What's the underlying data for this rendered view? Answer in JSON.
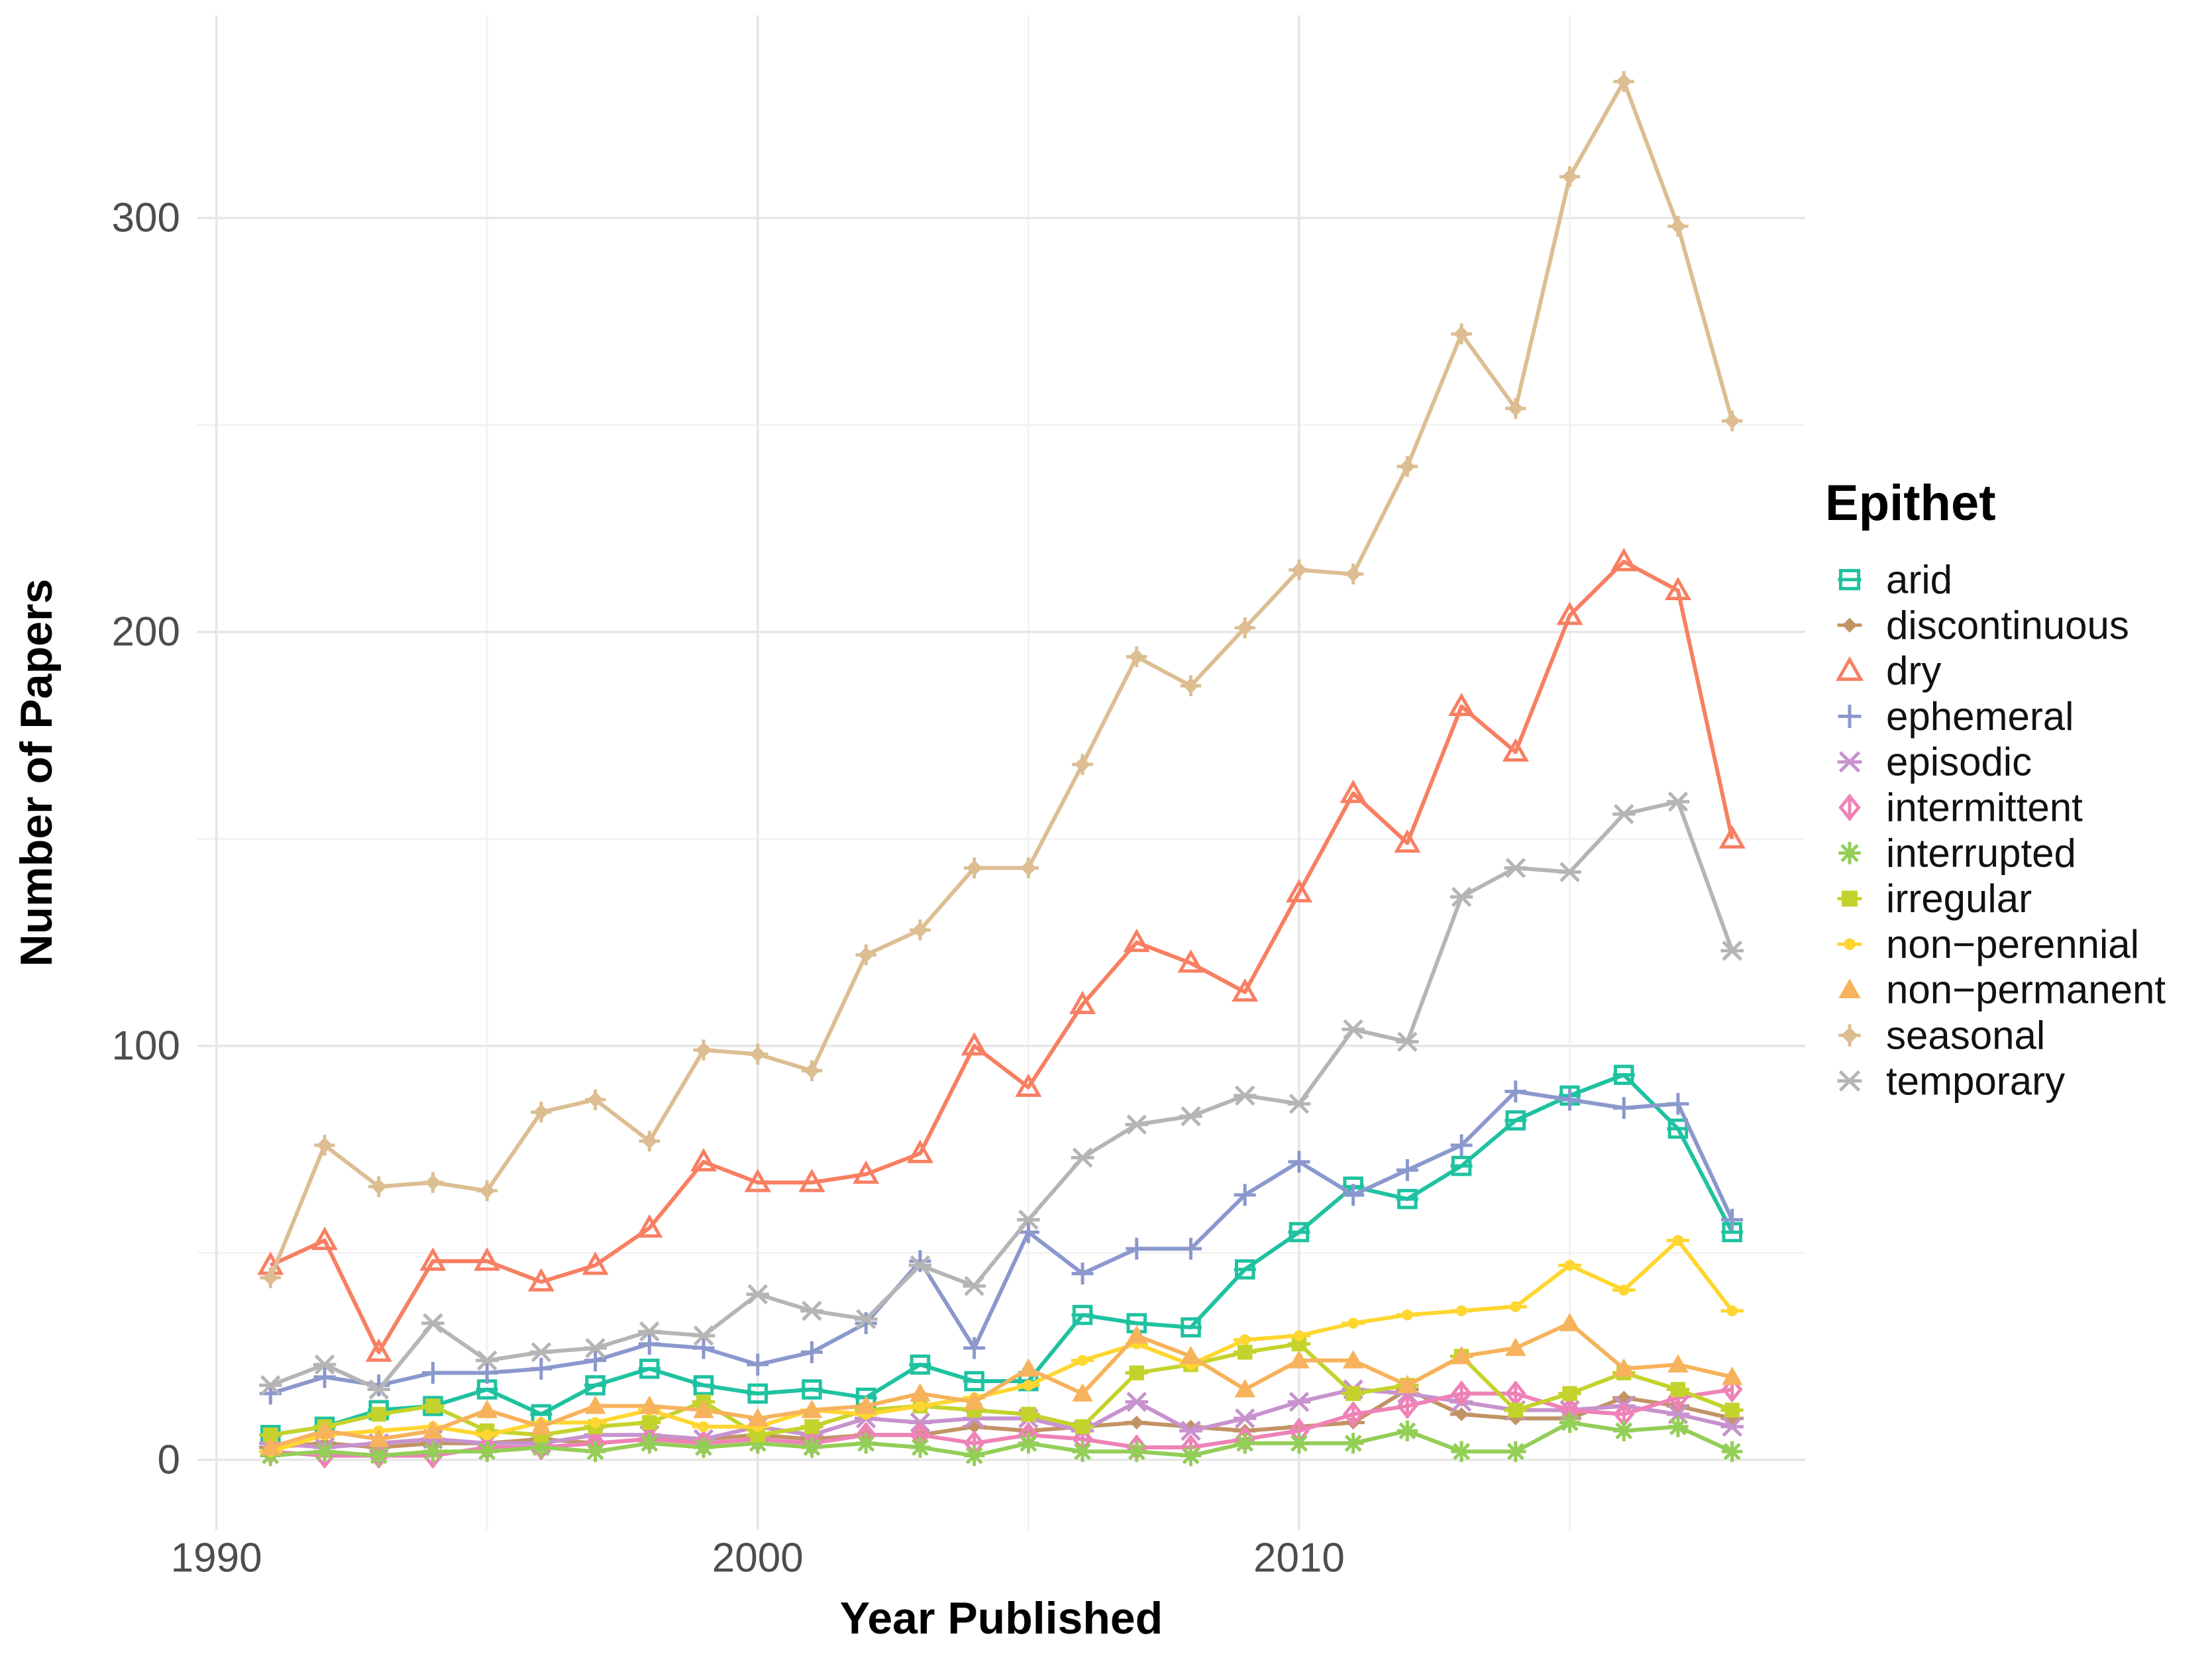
{
  "chart_data": {
    "type": "line",
    "title": "",
    "xlabel": "Year Published",
    "ylabel": "Number of Papers",
    "legend_title": "Epithet",
    "legend_position": "right",
    "grid": true,
    "x": [
      1991,
      1992,
      1993,
      1994,
      1995,
      1996,
      1997,
      1998,
      1999,
      2000,
      2001,
      2002,
      2003,
      2004,
      2005,
      2006,
      2007,
      2008,
      2009,
      2010,
      2011,
      2012,
      2013,
      2014,
      2015,
      2016,
      2017,
      2018
    ],
    "xlim": [
      1989.65,
      2019.35
    ],
    "ylim": [
      -17,
      349
    ],
    "x_ticks": [
      1990,
      2000,
      2010
    ],
    "x_minor_ticks": [
      1995,
      2005,
      2015
    ],
    "y_ticks": [
      0,
      100,
      200,
      300
    ],
    "y_minor_ticks": [
      50,
      150,
      250
    ],
    "series": [
      {
        "name": "arid",
        "color": "#1fc2a0",
        "marker": "square-open-dash",
        "values": [
          6,
          8,
          12,
          13,
          17,
          11,
          18,
          22,
          18,
          16,
          17,
          15,
          23,
          19,
          19,
          35,
          33,
          32,
          46,
          55,
          66,
          63,
          71,
          82,
          88,
          93,
          80,
          55
        ]
      },
      {
        "name": "discontinuous",
        "color": "#c29365",
        "marker": "diamond-filled-hline",
        "values": [
          3,
          4,
          3,
          4,
          4,
          5,
          4,
          5,
          5,
          6,
          5,
          6,
          6,
          8,
          7,
          8,
          9,
          8,
          7,
          8,
          9,
          17,
          11,
          10,
          10,
          15,
          13,
          10
        ]
      },
      {
        "name": "dry",
        "color": "#f87f62",
        "marker": "triangle-open",
        "values": [
          47,
          53,
          26,
          48,
          48,
          43,
          47,
          56,
          72,
          67,
          67,
          69,
          74,
          100,
          90,
          110,
          125,
          120,
          113,
          137,
          161,
          149,
          182,
          171,
          204,
          217,
          210,
          150
        ]
      },
      {
        "name": "ephemeral",
        "color": "#8b98cd",
        "marker": "plus",
        "values": [
          16,
          20,
          18,
          21,
          21,
          22,
          24,
          28,
          27,
          23,
          26,
          33,
          48,
          27,
          55,
          45,
          51,
          51,
          64,
          72,
          64,
          70,
          76,
          89,
          87,
          85,
          86,
          58
        ]
      },
      {
        "name": "episodic",
        "color": "#c792ce",
        "marker": "asterisk-x",
        "values": [
          4,
          3,
          4,
          5,
          4,
          4,
          6,
          6,
          5,
          8,
          6,
          10,
          9,
          10,
          10,
          7,
          14,
          7,
          10,
          14,
          17,
          16,
          14,
          12,
          12,
          13,
          11,
          8
        ]
      },
      {
        "name": "intermittent",
        "color": "#ee82b6",
        "marker": "diamond-open-vline",
        "values": [
          2,
          1,
          1,
          1,
          3,
          3,
          4,
          5,
          4,
          5,
          4,
          6,
          6,
          4,
          6,
          5,
          3,
          3,
          5,
          7,
          11,
          13,
          16,
          16,
          12,
          11,
          15,
          17
        ]
      },
      {
        "name": "interrupted",
        "color": "#93ce57",
        "marker": "asterisk",
        "values": [
          1,
          2,
          1,
          2,
          2,
          3,
          2,
          4,
          3,
          4,
          3,
          4,
          3,
          1,
          4,
          2,
          2,
          1,
          4,
          4,
          4,
          7,
          2,
          2,
          9,
          7,
          8,
          2
        ]
      },
      {
        "name": "irregular",
        "color": "#c4d32c",
        "marker": "square-filled-dash",
        "values": [
          6,
          8,
          11,
          13,
          7,
          6,
          8,
          9,
          14,
          6,
          8,
          12,
          13,
          12,
          11,
          8,
          21,
          23,
          26,
          28,
          16,
          18,
          25,
          12,
          16,
          21,
          17,
          12
        ]
      },
      {
        "name": "non−perennial",
        "color": "#ffd630",
        "marker": "circle-dash",
        "values": [
          2,
          6,
          7,
          8,
          6,
          9,
          9,
          12,
          8,
          8,
          12,
          11,
          13,
          15,
          18,
          24,
          28,
          23,
          29,
          30,
          33,
          35,
          36,
          37,
          47,
          41,
          53,
          36
        ]
      },
      {
        "name": "non−permanent",
        "color": "#f7b25c",
        "marker": "triangle-filled",
        "values": [
          3,
          7,
          5,
          7,
          12,
          8,
          13,
          13,
          12,
          10,
          12,
          13,
          16,
          14,
          22,
          16,
          30,
          25,
          17,
          24,
          24,
          18,
          25,
          27,
          33,
          22,
          23,
          20
        ]
      },
      {
        "name": "seasonal",
        "color": "#dcbe92",
        "marker": "diamond-filled-plus",
        "values": [
          44,
          76,
          66,
          67,
          65,
          84,
          87,
          77,
          99,
          98,
          94,
          122,
          128,
          143,
          143,
          168,
          194,
          187,
          201,
          215,
          214,
          240,
          272,
          254,
          310,
          333,
          298,
          251
        ]
      },
      {
        "name": "temporary",
        "color": "#b5b5b5",
        "marker": "x-hline",
        "values": [
          18,
          23,
          17,
          33,
          24,
          26,
          27,
          31,
          30,
          40,
          36,
          34,
          47,
          42,
          58,
          73,
          81,
          83,
          88,
          86,
          104,
          101,
          136,
          143,
          142,
          156,
          159,
          123
        ]
      }
    ]
  },
  "style": {
    "background": "#ffffff",
    "grid_major_color": "#e6e6e6",
    "grid_minor_color": "#f3f3f3",
    "tick_label_color": "#4d4d4d",
    "title_color": "#000000",
    "legend_text_color": "#111111"
  }
}
